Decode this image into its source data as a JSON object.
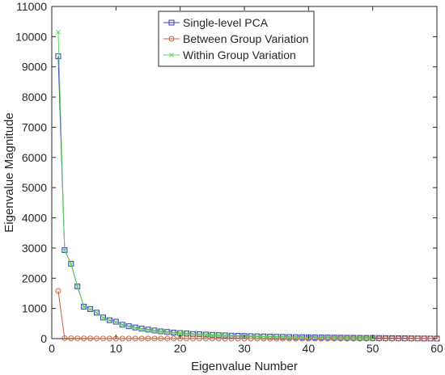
{
  "colors": {
    "axis": "#262626",
    "series": [
      "#3a3ab0",
      "#c8643c",
      "#5fd65f"
    ]
  },
  "chart_data": {
    "type": "line",
    "xlabel": "Eigenvalue Number",
    "ylabel": "Eigenvalue Magnitude",
    "xlim": [
      0,
      60
    ],
    "ylim": [
      0,
      11000
    ],
    "xticks": [
      0,
      10,
      20,
      30,
      40,
      50,
      60
    ],
    "yticks": [
      0,
      1000,
      2000,
      3000,
      4000,
      5000,
      6000,
      7000,
      8000,
      9000,
      10000,
      11000
    ],
    "grid": false,
    "legend_position": "top-center",
    "series": [
      {
        "name": "Single-level PCA",
        "marker": "square",
        "x": [
          1,
          2,
          3,
          4,
          5,
          6,
          7,
          8,
          9,
          10,
          11,
          12,
          13,
          14,
          15,
          16,
          17,
          18,
          19,
          20,
          21,
          22,
          23,
          24,
          25,
          26,
          27,
          28,
          29,
          30,
          31,
          32,
          33,
          34,
          35,
          36,
          37,
          38,
          39,
          40,
          41,
          42,
          43,
          44,
          45,
          46,
          47,
          48,
          49,
          50,
          51,
          52,
          53,
          54,
          55,
          56,
          57,
          58,
          59,
          60
        ],
        "values": [
          9350,
          2930,
          2480,
          1730,
          1060,
          980,
          860,
          700,
          610,
          560,
          460,
          410,
          370,
          330,
          300,
          270,
          240,
          220,
          200,
          185,
          170,
          155,
          145,
          135,
          125,
          115,
          108,
          100,
          93,
          87,
          81,
          76,
          71,
          66,
          62,
          58,
          54,
          50,
          47,
          44,
          41,
          38,
          36,
          34,
          32,
          30,
          28,
          26,
          24,
          22,
          20,
          18,
          16,
          14,
          12,
          10,
          8,
          6,
          4,
          2
        ]
      },
      {
        "name": "Between Group Variation",
        "marker": "circle",
        "x": [
          1,
          2,
          3,
          4,
          5,
          6,
          7,
          8,
          9,
          10,
          11,
          12,
          13,
          14,
          15,
          16,
          17,
          18,
          19,
          20,
          21,
          22,
          23,
          24,
          25,
          26,
          27,
          28,
          29,
          30,
          31,
          32,
          33,
          34,
          35,
          36,
          37,
          38,
          39,
          40,
          41,
          42,
          43,
          44,
          45,
          46,
          47,
          48,
          49,
          50,
          51,
          52,
          53,
          54,
          55,
          56,
          57,
          58,
          59,
          60
        ],
        "values": [
          1580,
          15,
          10,
          8,
          7,
          6,
          5,
          5,
          4,
          4,
          4,
          3,
          3,
          3,
          3,
          3,
          2,
          2,
          2,
          2,
          2,
          2,
          2,
          2,
          2,
          2,
          1,
          1,
          1,
          1,
          1,
          1,
          1,
          1,
          1,
          1,
          1,
          1,
          1,
          1,
          1,
          1,
          1,
          1,
          1,
          1,
          1,
          1,
          1,
          1,
          1,
          1,
          1,
          1,
          1,
          1,
          1,
          1,
          1,
          1
        ]
      },
      {
        "name": "Within Group Variation",
        "marker": "x",
        "x": [
          1,
          2,
          3,
          4,
          5,
          6,
          7,
          8,
          9,
          10,
          11,
          12,
          13,
          14,
          15,
          16,
          17,
          18,
          19,
          20,
          21,
          22,
          23,
          24,
          25,
          26,
          27,
          28,
          29,
          30,
          31,
          32,
          33,
          34,
          35,
          36,
          37,
          38,
          39,
          40,
          41,
          42,
          43,
          44,
          45,
          46,
          47,
          48,
          49,
          50
        ],
        "values": [
          10150,
          2920,
          2470,
          1720,
          1050,
          970,
          850,
          690,
          600,
          550,
          450,
          400,
          360,
          320,
          290,
          260,
          230,
          210,
          190,
          175,
          160,
          150,
          140,
          130,
          120,
          110,
          103,
          96,
          89,
          83,
          77,
          72,
          67,
          62,
          58,
          54,
          50,
          46,
          43,
          40,
          37,
          35,
          33,
          31,
          29,
          27,
          25,
          23,
          21,
          19
        ]
      }
    ]
  }
}
